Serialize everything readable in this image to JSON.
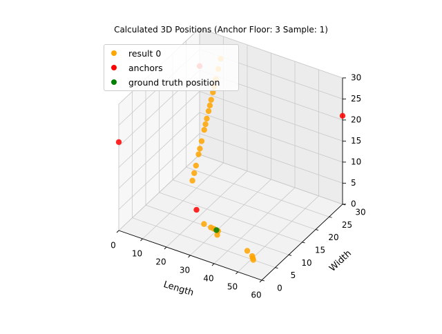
{
  "chart_data": {
    "type": "scatter",
    "projection": "3d",
    "title": "Calculated 3D Positions (Anchor Floor: 3 Sample: 1)",
    "xlabel": "Length",
    "ylabel": "Width",
    "zlabel": "",
    "xlim": [
      0,
      60
    ],
    "ylim": [
      0,
      30
    ],
    "zlim": [
      0,
      30
    ],
    "xticks": [
      "0",
      "10",
      "20",
      "30",
      "40",
      "50",
      "60"
    ],
    "yticks": [
      "0",
      "5",
      "10",
      "15",
      "20",
      "25",
      "30"
    ],
    "zticks": [
      "0",
      "5",
      "10",
      "15",
      "20",
      "25",
      "30"
    ],
    "legend": {
      "placement": "upper-left",
      "entries": [
        {
          "label": "result 0",
          "color": "#ffa500"
        },
        {
          "label": "anchors",
          "color": "#ff0000"
        },
        {
          "label": "ground truth position",
          "color": "#008000"
        }
      ]
    },
    "series": [
      {
        "name": "result 0",
        "color": "#ffa500",
        "points": [
          {
            "x": 16.4,
            "y": 23.3,
            "z": 30.0
          },
          {
            "x": 16.0,
            "y": 22.8,
            "z": 27.8
          },
          {
            "x": 15.6,
            "y": 22.3,
            "z": 25.6
          },
          {
            "x": 15.3,
            "y": 21.9,
            "z": 24.0
          },
          {
            "x": 15.1,
            "y": 21.6,
            "z": 22.8
          },
          {
            "x": 14.8,
            "y": 21.2,
            "z": 21.2
          },
          {
            "x": 14.6,
            "y": 20.9,
            "z": 20.0
          },
          {
            "x": 14.4,
            "y": 20.6,
            "z": 18.8
          },
          {
            "x": 14.1,
            "y": 20.2,
            "z": 17.2
          },
          {
            "x": 13.9,
            "y": 19.9,
            "z": 16.0
          },
          {
            "x": 13.7,
            "y": 19.6,
            "z": 14.8
          },
          {
            "x": 13.3,
            "y": 19.0,
            "z": 12.4
          },
          {
            "x": 13.0,
            "y": 18.6,
            "z": 10.8
          },
          {
            "x": 12.8,
            "y": 18.3,
            "z": 9.6
          },
          {
            "x": 12.4,
            "y": 17.7,
            "z": 7.2
          },
          {
            "x": 12.1,
            "y": 17.3,
            "z": 5.6
          },
          {
            "x": 11.8,
            "y": 16.9,
            "z": 4.0
          },
          {
            "x": 24.0,
            "y": 10.4,
            "z": 0.0
          },
          {
            "x": 27.2,
            "y": 10.1,
            "z": 0.0
          },
          {
            "x": 28.6,
            "y": 10.0,
            "z": 0.0
          },
          {
            "x": 30.6,
            "y": 9.8,
            "z": 0.0
          },
          {
            "x": 31.6,
            "y": 8.6,
            "z": 0.0
          },
          {
            "x": 46.0,
            "y": 7.0,
            "z": 0.0
          },
          {
            "x": 49.2,
            "y": 6.0,
            "z": 0.0
          },
          {
            "x": 50.0,
            "y": 5.5,
            "z": 0.0
          },
          {
            "x": 50.8,
            "y": 5.0,
            "z": 0.0
          }
        ]
      },
      {
        "name": "anchors",
        "color": "#ff0000",
        "points": [
          {
            "x": 0.0,
            "y": 0.0,
            "z": 21.0
          },
          {
            "x": 0.0,
            "y": 30.0,
            "z": 21.0
          },
          {
            "x": 60.0,
            "y": 30.0,
            "z": 21.0
          },
          {
            "x": 21.2,
            "y": 10.1,
            "z": 3.0
          }
        ]
      },
      {
        "name": "ground truth position",
        "color": "#008000",
        "points": [
          {
            "x": 29.8,
            "y": 9.9,
            "z": 0.0
          }
        ]
      }
    ]
  }
}
